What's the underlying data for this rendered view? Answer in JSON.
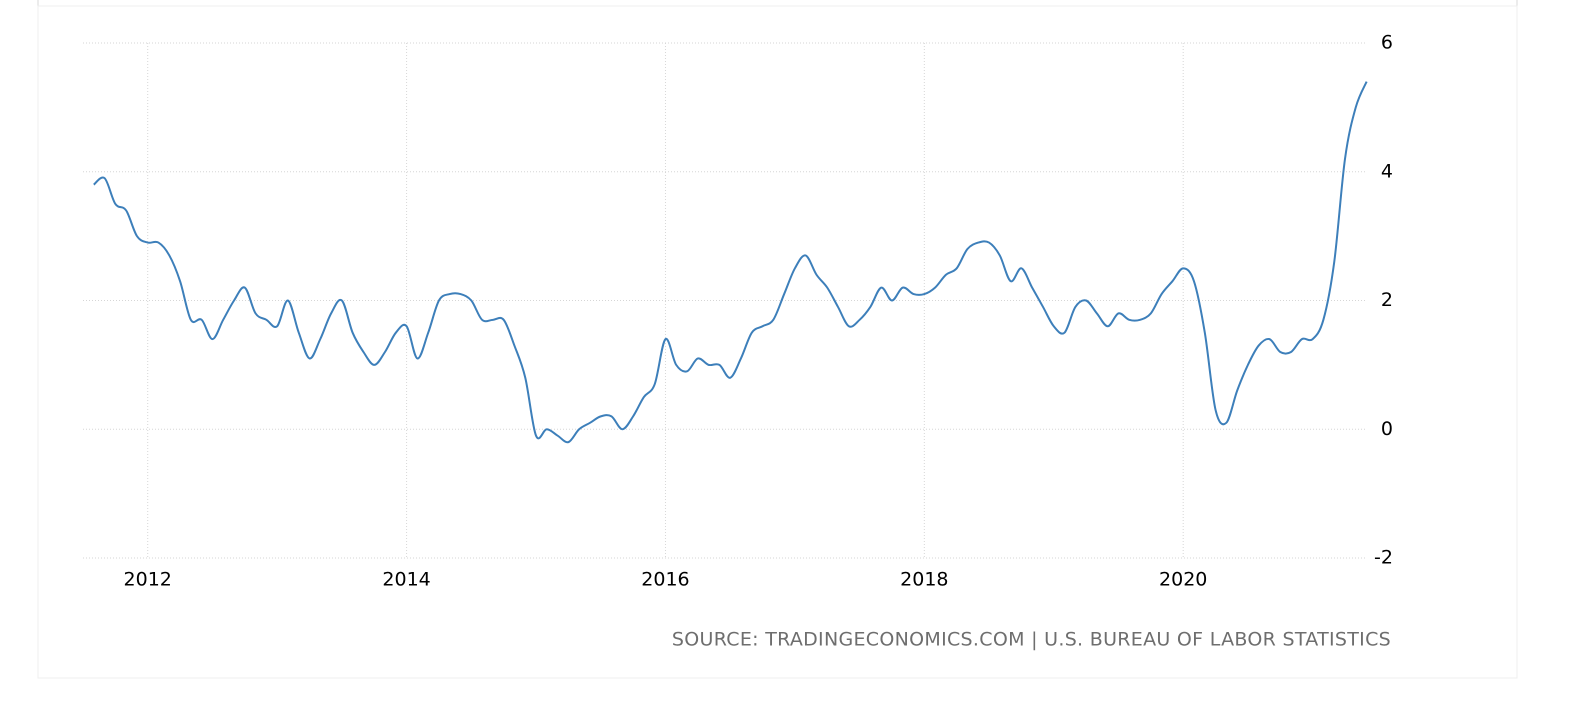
{
  "chart_data": {
    "type": "line",
    "source": "SOURCE: TRADINGECONOMICS.COM | U.S. BUREAU OF LABOR STATISTICS",
    "x": [
      2011.583,
      2011.667,
      2011.75,
      2011.833,
      2011.917,
      2012,
      2012.083,
      2012.167,
      2012.25,
      2012.333,
      2012.417,
      2012.5,
      2012.583,
      2012.667,
      2012.75,
      2012.833,
      2012.917,
      2013,
      2013.083,
      2013.167,
      2013.25,
      2013.333,
      2013.417,
      2013.5,
      2013.583,
      2013.667,
      2013.75,
      2013.833,
      2013.917,
      2014,
      2014.083,
      2014.167,
      2014.25,
      2014.333,
      2014.417,
      2014.5,
      2014.583,
      2014.667,
      2014.75,
      2014.833,
      2014.917,
      2015,
      2015.083,
      2015.167,
      2015.25,
      2015.333,
      2015.417,
      2015.5,
      2015.583,
      2015.667,
      2015.75,
      2015.833,
      2015.917,
      2016,
      2016.083,
      2016.167,
      2016.25,
      2016.333,
      2016.417,
      2016.5,
      2016.583,
      2016.667,
      2016.75,
      2016.833,
      2016.917,
      2017,
      2017.083,
      2017.167,
      2017.25,
      2017.333,
      2017.417,
      2017.5,
      2017.583,
      2017.667,
      2017.75,
      2017.833,
      2017.917,
      2018,
      2018.083,
      2018.167,
      2018.25,
      2018.333,
      2018.417,
      2018.5,
      2018.583,
      2018.667,
      2018.75,
      2018.833,
      2018.917,
      2019,
      2019.083,
      2019.167,
      2019.25,
      2019.333,
      2019.417,
      2019.5,
      2019.583,
      2019.667,
      2019.75,
      2019.833,
      2019.917,
      2020,
      2020.083,
      2020.167,
      2020.25,
      2020.333,
      2020.417,
      2020.5,
      2020.583,
      2020.667,
      2020.75,
      2020.833,
      2020.917,
      2021,
      2021.083,
      2021.167,
      2021.25,
      2021.333,
      2021.417
    ],
    "series": [
      {
        "color": "#3d7fba",
        "values": [
          3.8,
          3.9,
          3.5,
          3.4,
          3.0,
          2.9,
          2.9,
          2.7,
          2.3,
          1.7,
          1.7,
          1.4,
          1.7,
          2.0,
          2.2,
          1.8,
          1.7,
          1.6,
          2.0,
          1.5,
          1.1,
          1.4,
          1.8,
          2.0,
          1.5,
          1.2,
          1.0,
          1.2,
          1.5,
          1.6,
          1.1,
          1.5,
          2.0,
          2.1,
          2.1,
          2.0,
          1.7,
          1.7,
          1.7,
          1.3,
          0.8,
          -0.1,
          0.0,
          -0.1,
          -0.2,
          0.0,
          0.1,
          0.2,
          0.2,
          0.0,
          0.2,
          0.5,
          0.7,
          1.4,
          1.0,
          0.9,
          1.1,
          1.0,
          1.0,
          0.8,
          1.1,
          1.5,
          1.6,
          1.7,
          2.1,
          2.5,
          2.7,
          2.4,
          2.2,
          1.9,
          1.6,
          1.7,
          1.9,
          2.2,
          2.0,
          2.2,
          2.1,
          2.1,
          2.2,
          2.4,
          2.5,
          2.8,
          2.9,
          2.9,
          2.7,
          2.3,
          2.5,
          2.2,
          1.9,
          1.6,
          1.5,
          1.9,
          2.0,
          1.8,
          1.6,
          1.8,
          1.7,
          1.7,
          1.8,
          2.1,
          2.3,
          2.5,
          2.3,
          1.5,
          0.3,
          0.1,
          0.6,
          1.0,
          1.3,
          1.4,
          1.2,
          1.2,
          1.4,
          1.4,
          1.7,
          2.6,
          4.2,
          5.0,
          5.4
        ]
      }
    ],
    "xlim": [
      2011.5,
      2021.42
    ],
    "xticks": [
      2012,
      2014,
      2016,
      2018,
      2020
    ],
    "ylim": [
      -2,
      6
    ],
    "yticks": [
      -2,
      0,
      2,
      4,
      6
    ],
    "grid": true
  }
}
